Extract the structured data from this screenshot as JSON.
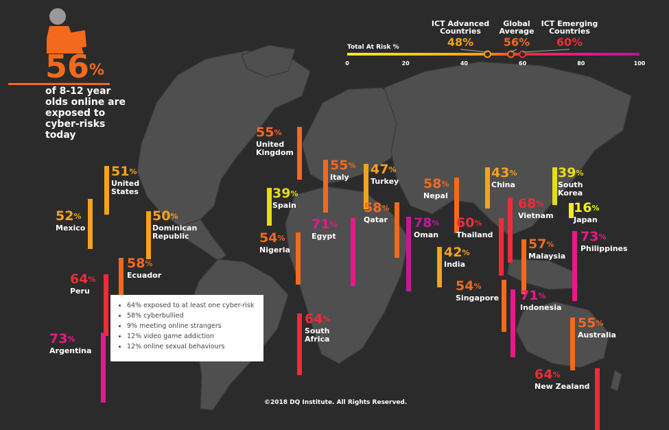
{
  "headline": {
    "percent": "56",
    "percent_sign": "%",
    "text": "of 8-12 year olds online are exposed to cyber-risks today"
  },
  "scale": {
    "title": "Total At Risk %",
    "ticks": [
      "0",
      "20",
      "40",
      "60",
      "80",
      "100"
    ],
    "markers": [
      {
        "label": "ICT Advanced Countries",
        "value_text": "48%",
        "value": 48,
        "color": "#f7a21b"
      },
      {
        "label": "Global Average",
        "value_text": "56%",
        "value": 56,
        "color": "#f36a1d"
      },
      {
        "label": "ICT Emerging Countries",
        "value_text": "60%",
        "value": 60,
        "color": "#ef2c39"
      }
    ]
  },
  "chart_data": {
    "type": "bar",
    "title": "",
    "ylabel": "Total At Risk %",
    "ylim": [
      0,
      100
    ],
    "categories": [
      "United States",
      "Mexico",
      "Dominican Republic",
      "Ecuador",
      "Peru",
      "Argentina",
      "United Kingdom",
      "Spain",
      "Italy",
      "Turkey",
      "Nigeria",
      "Egypt",
      "Qatar",
      "South Africa",
      "Oman",
      "Nepal",
      "India",
      "China",
      "Thailand",
      "Vietnam",
      "South Korea",
      "Japan",
      "Malaysia",
      "Philippines",
      "Singapore",
      "Indonesia",
      "Australia",
      "New Zealand"
    ],
    "values": [
      51,
      52,
      50,
      58,
      64,
      73,
      55,
      39,
      55,
      47,
      54,
      71,
      58,
      64,
      78,
      58,
      42,
      43,
      60,
      68,
      39,
      16,
      57,
      73,
      54,
      71,
      55,
      64
    ]
  },
  "countries": [
    {
      "name": "United States",
      "value": "51",
      "color": "#f7a21b"
    },
    {
      "name": "Mexico",
      "value": "52",
      "color": "#f7a21b"
    },
    {
      "name": "Dominican Republic",
      "value": "50",
      "color": "#f7a21b"
    },
    {
      "name": "Ecuador",
      "value": "58",
      "color": "#f36a1d"
    },
    {
      "name": "Peru",
      "value": "64",
      "color": "#ef2c39"
    },
    {
      "name": "Argentina",
      "value": "73",
      "color": "#e8198a"
    },
    {
      "name": "United Kingdom",
      "value": "55",
      "color": "#f36a1d"
    },
    {
      "name": "Spain",
      "value": "39",
      "color": "#e6dd19"
    },
    {
      "name": "Italy",
      "value": "55",
      "color": "#f36a1d"
    },
    {
      "name": "Turkey",
      "value": "47",
      "color": "#f7a21b"
    },
    {
      "name": "Nigeria",
      "value": "54",
      "color": "#f36a1d"
    },
    {
      "name": "Egypt",
      "value": "71",
      "color": "#e8198a"
    },
    {
      "name": "Qatar",
      "value": "58",
      "color": "#f36a1d"
    },
    {
      "name": "South Africa",
      "value": "64",
      "color": "#ef2c39"
    },
    {
      "name": "Oman",
      "value": "78",
      "color": "#c4189b"
    },
    {
      "name": "Nepal",
      "value": "58",
      "color": "#f36a1d"
    },
    {
      "name": "India",
      "value": "42",
      "color": "#f7a21b"
    },
    {
      "name": "China",
      "value": "43",
      "color": "#f7a21b"
    },
    {
      "name": "Thailand",
      "value": "60",
      "color": "#ef2c39"
    },
    {
      "name": "Vietnam",
      "value": "68",
      "color": "#ef2c39"
    },
    {
      "name": "South Korea",
      "value": "39",
      "color": "#e6dd19"
    },
    {
      "name": "Japan",
      "value": "16",
      "color": "#f2ee22"
    },
    {
      "name": "Malaysia",
      "value": "57",
      "color": "#f36a1d"
    },
    {
      "name": "Philippines",
      "value": "73",
      "color": "#e8198a"
    },
    {
      "name": "Singapore",
      "value": "54",
      "color": "#f36a1d"
    },
    {
      "name": "Indonesia",
      "value": "71",
      "color": "#e8198a"
    },
    {
      "name": "Australia",
      "value": "55",
      "color": "#f36a1d"
    },
    {
      "name": "New Zealand",
      "value": "64",
      "color": "#ef2c39"
    }
  ],
  "notes": [
    "64% exposed to at least one cyber-risk",
    "58% cyberbullied",
    "9% meeting online strangers",
    "12% video game addiction",
    "12% online sexual behaviours"
  ],
  "footer": "©2018 DQ Institute. All Rights Reserved."
}
